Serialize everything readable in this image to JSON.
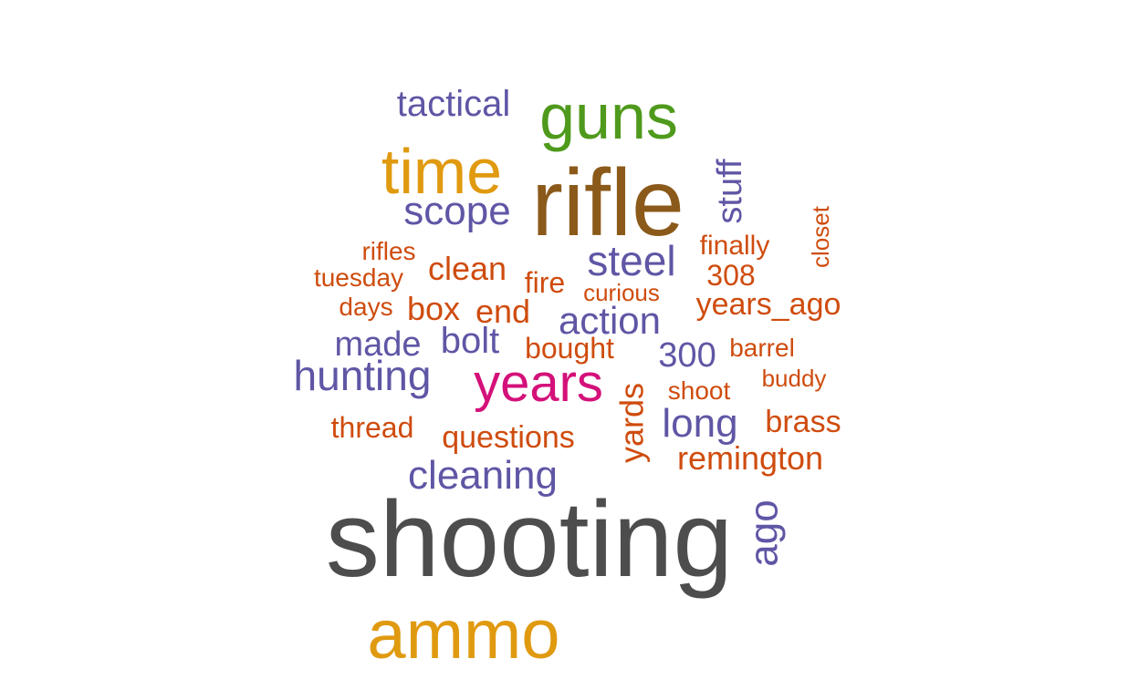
{
  "colors": {
    "gray": "#4d4d4d",
    "brown": "#8b5a1a",
    "green": "#4f9a1c",
    "gold": "#e09a10",
    "magenta": "#d4117a",
    "purple": "#5f56a5",
    "orange": "#cf4c0e"
  },
  "words": [
    {
      "text": "shooting",
      "color": "gray"
    },
    {
      "text": "rifle",
      "color": "brown"
    },
    {
      "text": "guns",
      "color": "green"
    },
    {
      "text": "time",
      "color": "gold"
    },
    {
      "text": "ammo",
      "color": "gold"
    },
    {
      "text": "years",
      "color": "magenta"
    },
    {
      "text": "tactical",
      "color": "purple"
    },
    {
      "text": "scope",
      "color": "purple"
    },
    {
      "text": "stuff",
      "color": "purple"
    },
    {
      "text": "closet",
      "color": "orange"
    },
    {
      "text": "rifles",
      "color": "orange"
    },
    {
      "text": "tuesday",
      "color": "orange"
    },
    {
      "text": "clean",
      "color": "orange"
    },
    {
      "text": "steel",
      "color": "purple"
    },
    {
      "text": "finally",
      "color": "orange"
    },
    {
      "text": "308",
      "color": "orange"
    },
    {
      "text": "fire",
      "color": "orange"
    },
    {
      "text": "curious",
      "color": "orange"
    },
    {
      "text": "days",
      "color": "orange"
    },
    {
      "text": "box",
      "color": "orange"
    },
    {
      "text": "end",
      "color": "orange"
    },
    {
      "text": "action",
      "color": "purple"
    },
    {
      "text": "years_ago",
      "color": "orange"
    },
    {
      "text": "made",
      "color": "purple"
    },
    {
      "text": "bolt",
      "color": "purple"
    },
    {
      "text": "bought",
      "color": "orange"
    },
    {
      "text": "300",
      "color": "purple"
    },
    {
      "text": "barrel",
      "color": "orange"
    },
    {
      "text": "hunting",
      "color": "purple"
    },
    {
      "text": "buddy",
      "color": "orange"
    },
    {
      "text": "shoot",
      "color": "orange"
    },
    {
      "text": "yards",
      "color": "orange"
    },
    {
      "text": "long",
      "color": "purple"
    },
    {
      "text": "thread",
      "color": "orange"
    },
    {
      "text": "questions",
      "color": "orange"
    },
    {
      "text": "brass",
      "color": "orange"
    },
    {
      "text": "remington",
      "color": "orange"
    },
    {
      "text": "cleaning",
      "color": "purple"
    },
    {
      "text": "ago",
      "color": "purple"
    }
  ]
}
